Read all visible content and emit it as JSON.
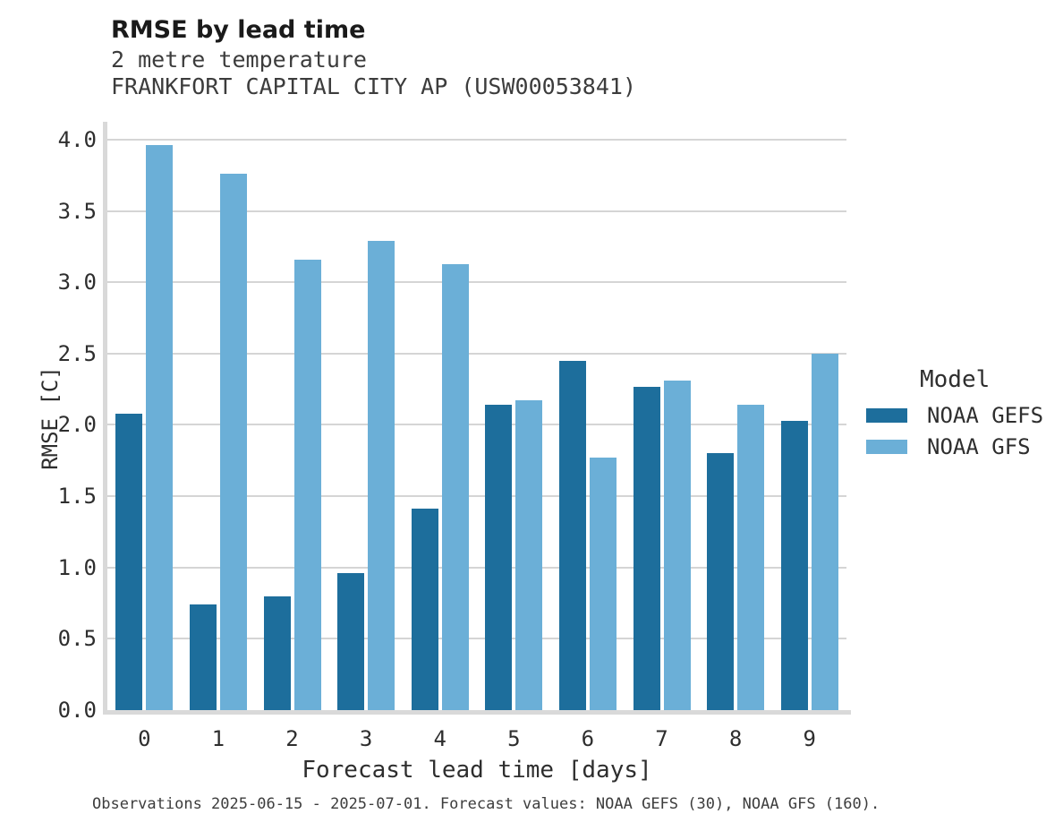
{
  "header": {
    "title": "RMSE by lead time",
    "subtitle_line1": "2 metre temperature",
    "subtitle_line2": "FRANKFORT CAPITAL CITY AP (USW00053841)"
  },
  "axes": {
    "xlabel": "Forecast lead time [days]",
    "ylabel": "RMSE [C]"
  },
  "legend": {
    "title": "Model",
    "items": [
      {
        "label": "NOAA GEFS",
        "color": "#1d6e9c"
      },
      {
        "label": "NOAA GFS",
        "color": "#6bafd7"
      }
    ]
  },
  "caption": "Observations 2025-06-15 - 2025-07-01. Forecast values: NOAA GEFS (30), NOAA GFS (160).",
  "chart_data": {
    "type": "bar",
    "title": "RMSE by lead time",
    "subtitle": [
      "2 metre temperature",
      "FRANKFORT CAPITAL CITY AP (USW00053841)"
    ],
    "xlabel": "Forecast lead time [days]",
    "ylabel": "RMSE [C]",
    "categories": [
      "0",
      "1",
      "2",
      "3",
      "4",
      "5",
      "6",
      "7",
      "8",
      "9"
    ],
    "series": [
      {
        "name": "NOAA GEFS",
        "color": "#1d6e9c",
        "values": [
          2.08,
          0.74,
          0.8,
          0.96,
          1.41,
          2.14,
          2.45,
          2.27,
          1.8,
          2.03
        ]
      },
      {
        "name": "NOAA GFS",
        "color": "#6bafd7",
        "values": [
          3.96,
          3.76,
          3.16,
          3.29,
          3.13,
          2.17,
          1.77,
          2.31,
          2.14,
          2.5
        ]
      }
    ],
    "ylim": [
      0,
      4.125
    ],
    "yticks": [
      0.0,
      0.5,
      1.0,
      1.5,
      2.0,
      2.5,
      3.0,
      3.5,
      4.0
    ],
    "grid": "horizontal",
    "grid_color": "#d5d5d5",
    "spine_color": "#d9d9d9",
    "legend_title": "Model",
    "legend_position": "right"
  }
}
